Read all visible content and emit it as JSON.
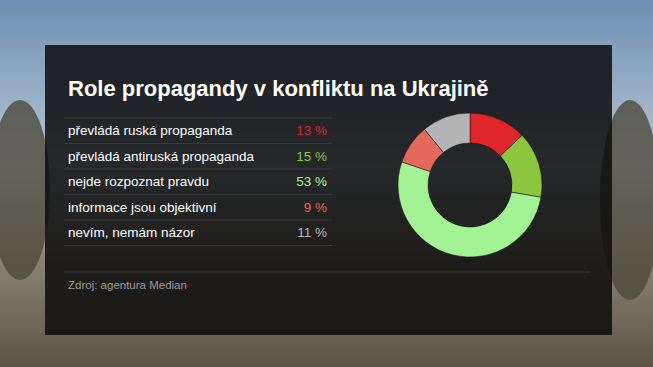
{
  "chart_data": {
    "type": "pie",
    "title": "Role propagandy v konfliktu na Ukrajině",
    "categories": [
      "převládá ruská propaganda",
      "převládá antiruská propaganda",
      "nejde rozpoznat pravdu",
      "informace jsou objektivní",
      "nevím, nemám názor"
    ],
    "values": [
      13,
      15,
      53,
      9,
      11
    ],
    "value_labels": [
      "13 %",
      "15 %",
      "53 %",
      "9 %",
      "11 %"
    ],
    "colors": [
      "#e0262a",
      "#8cc63e",
      "#a3f294",
      "#e4685c",
      "#b4b4b4"
    ],
    "data_labels": true,
    "source": "Zdroj: agentura Median"
  }
}
